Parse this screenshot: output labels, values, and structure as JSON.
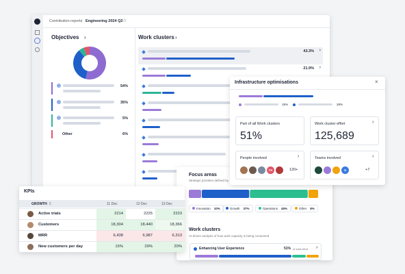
{
  "breadcrumb": {
    "section": "Contribution reports",
    "page": "Engineering 2024 Q2"
  },
  "objectives": {
    "title": "Objectives",
    "items": [
      {
        "value": 54,
        "label": "54%",
        "color": "#8e6bd1"
      },
      {
        "value": 35,
        "label": "35%",
        "color": "#1f5fc9"
      },
      {
        "value": 5,
        "label": "5%",
        "color": "#2bb597"
      },
      {
        "value": 6,
        "label": "6%",
        "name": "Other",
        "color": "#e0566b"
      }
    ]
  },
  "work_clusters": {
    "title": "Work clusters",
    "values": [
      "43.3%",
      "21.9%"
    ]
  },
  "infra": {
    "title": "Infrastructure optimisations",
    "legend": [
      "15%",
      "28%"
    ],
    "cards": [
      {
        "title": "Part of all Work clusters",
        "value": "51%"
      },
      {
        "title": "Work cluster effort",
        "value": "125,689"
      },
      {
        "title": "People involved",
        "avatar": "TA",
        "count": "120+"
      },
      {
        "title": "Teams involved",
        "avatar": "S",
        "count": "+7"
      }
    ]
  },
  "kpis": {
    "title": "KPIs",
    "group": "GROWTH",
    "group_count": "5",
    "columns": [
      "11 Dec",
      "12 Dec",
      "13 Dec"
    ],
    "rows": [
      {
        "label": "Active trials",
        "cells": [
          "2214",
          "2225",
          "2223"
        ]
      },
      {
        "label": "Customers",
        "cells": [
          "18,304",
          "18,440",
          "18,366"
        ]
      },
      {
        "label": "MRR",
        "cells": [
          "6,438",
          "6,987",
          "6,313"
        ]
      },
      {
        "label": "New customers per day",
        "cells": [
          "15%",
          "29%",
          "20%"
        ]
      }
    ]
  },
  "focus": {
    "title": "Focus areas",
    "subtitle": "Strategic priorities defined by",
    "segments": [
      {
        "name": "Innovation",
        "value": 10,
        "label": "10%",
        "color": "#9b7ad8"
      },
      {
        "name": "Growth",
        "value": 37,
        "label": "37%",
        "color": "#1f5fc9"
      },
      {
        "name": "Operations",
        "value": 45,
        "label": "45%",
        "color": "#2bbf8f"
      },
      {
        "name": "Other",
        "value": 8,
        "label": "8%",
        "color": "#f0a30a"
      }
    ],
    "clusters_title": "Work clusters",
    "clusters_subtitle": "AI-driven analysis of how work capacity is being consumed",
    "cluster": {
      "name": "Enhancing User Experience",
      "share": "51%",
      "share_note": "of total effort"
    }
  }
}
